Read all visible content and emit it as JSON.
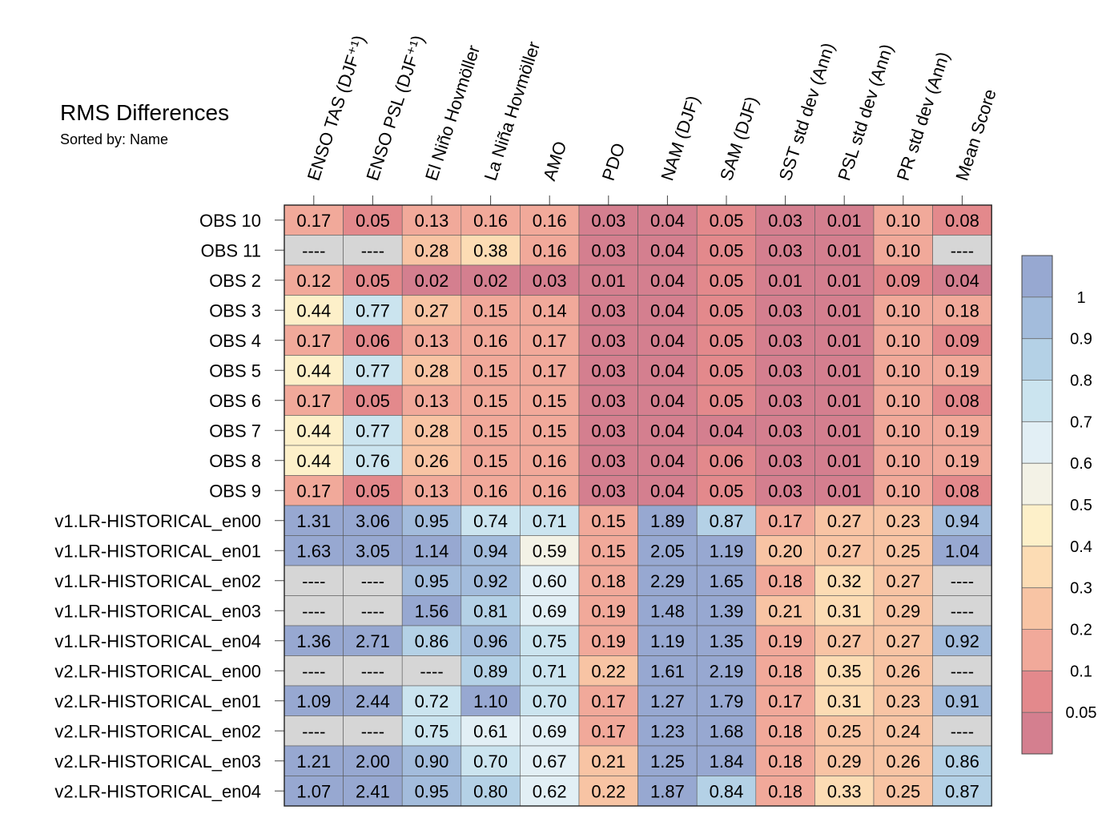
{
  "title": "RMS Differences",
  "subtitle": "Sorted by: Name",
  "chart_data": {
    "type": "heatmap",
    "columns": [
      "ENSO TAS (DJF⁺¹)",
      "ENSO PSL (DJF⁺¹)",
      "El Niño Hovmöller",
      "La Niña Hovmöller",
      "AMO",
      "PDO",
      "NAM (DJF)",
      "SAM (DJF)",
      "SST std dev (Ann)",
      "PSL std dev (Ann)",
      "PR std dev (Ann)",
      "Mean Score"
    ],
    "rows": [
      "OBS 10",
      "OBS 11",
      "OBS 2",
      "OBS 3",
      "OBS 4",
      "OBS 5",
      "OBS 6",
      "OBS 7",
      "OBS 8",
      "OBS 9",
      "v1.LR-HISTORICAL_en00",
      "v1.LR-HISTORICAL_en01",
      "v1.LR-HISTORICAL_en02",
      "v1.LR-HISTORICAL_en03",
      "v1.LR-HISTORICAL_en04",
      "v2.LR-HISTORICAL_en00",
      "v2.LR-HISTORICAL_en01",
      "v2.LR-HISTORICAL_en02",
      "v2.LR-HISTORICAL_en03",
      "v2.LR-HISTORICAL_en04"
    ],
    "values": [
      [
        "0.17",
        "0.05",
        "0.13",
        "0.16",
        "0.16",
        "0.03",
        "0.04",
        "0.05",
        "0.03",
        "0.01",
        "0.10",
        "0.08"
      ],
      [
        "----",
        "----",
        "0.28",
        "0.38",
        "0.16",
        "0.03",
        "0.04",
        "0.05",
        "0.03",
        "0.01",
        "0.10",
        "----"
      ],
      [
        "0.12",
        "0.05",
        "0.02",
        "0.02",
        "0.03",
        "0.01",
        "0.04",
        "0.05",
        "0.01",
        "0.01",
        "0.09",
        "0.04"
      ],
      [
        "0.44",
        "0.77",
        "0.27",
        "0.15",
        "0.14",
        "0.03",
        "0.04",
        "0.05",
        "0.03",
        "0.01",
        "0.10",
        "0.18"
      ],
      [
        "0.17",
        "0.06",
        "0.13",
        "0.16",
        "0.17",
        "0.03",
        "0.04",
        "0.05",
        "0.03",
        "0.01",
        "0.10",
        "0.09"
      ],
      [
        "0.44",
        "0.77",
        "0.28",
        "0.15",
        "0.17",
        "0.03",
        "0.04",
        "0.05",
        "0.03",
        "0.01",
        "0.10",
        "0.19"
      ],
      [
        "0.17",
        "0.05",
        "0.13",
        "0.15",
        "0.15",
        "0.03",
        "0.04",
        "0.05",
        "0.03",
        "0.01",
        "0.10",
        "0.08"
      ],
      [
        "0.44",
        "0.77",
        "0.28",
        "0.15",
        "0.15",
        "0.03",
        "0.04",
        "0.04",
        "0.03",
        "0.01",
        "0.10",
        "0.19"
      ],
      [
        "0.44",
        "0.76",
        "0.26",
        "0.15",
        "0.16",
        "0.03",
        "0.04",
        "0.06",
        "0.03",
        "0.01",
        "0.10",
        "0.19"
      ],
      [
        "0.17",
        "0.05",
        "0.13",
        "0.16",
        "0.16",
        "0.03",
        "0.04",
        "0.05",
        "0.03",
        "0.01",
        "0.10",
        "0.08"
      ],
      [
        "1.31",
        "3.06",
        "0.95",
        "0.74",
        "0.71",
        "0.15",
        "1.89",
        "0.87",
        "0.17",
        "0.27",
        "0.23",
        "0.94"
      ],
      [
        "1.63",
        "3.05",
        "1.14",
        "0.94",
        "0.59",
        "0.15",
        "2.05",
        "1.19",
        "0.20",
        "0.27",
        "0.25",
        "1.04"
      ],
      [
        "----",
        "----",
        "0.95",
        "0.92",
        "0.60",
        "0.18",
        "2.29",
        "1.65",
        "0.18",
        "0.32",
        "0.27",
        "----"
      ],
      [
        "----",
        "----",
        "1.56",
        "0.81",
        "0.69",
        "0.19",
        "1.48",
        "1.39",
        "0.21",
        "0.31",
        "0.29",
        "----"
      ],
      [
        "1.36",
        "2.71",
        "0.86",
        "0.96",
        "0.75",
        "0.19",
        "1.19",
        "1.35",
        "0.19",
        "0.27",
        "0.27",
        "0.92"
      ],
      [
        "----",
        "----",
        "----",
        "0.89",
        "0.71",
        "0.22",
        "1.61",
        "2.19",
        "0.18",
        "0.35",
        "0.26",
        "----"
      ],
      [
        "1.09",
        "2.44",
        "0.72",
        "1.10",
        "0.70",
        "0.17",
        "1.27",
        "1.79",
        "0.17",
        "0.31",
        "0.23",
        "0.91"
      ],
      [
        "----",
        "----",
        "0.75",
        "0.61",
        "0.69",
        "0.17",
        "1.23",
        "1.68",
        "0.18",
        "0.25",
        "0.24",
        "----"
      ],
      [
        "1.21",
        "2.00",
        "0.90",
        "0.70",
        "0.67",
        "0.21",
        "1.25",
        "1.84",
        "0.18",
        "0.29",
        "0.26",
        "0.86"
      ],
      [
        "1.07",
        "2.41",
        "0.95",
        "0.80",
        "0.62",
        "0.22",
        "1.87",
        "0.84",
        "0.18",
        "0.33",
        "0.25",
        "0.87"
      ]
    ],
    "missing_value": "----",
    "missing_color": "#d6d6d6",
    "colorbar": {
      "boundaries": [
        0.05,
        0.1,
        0.2,
        0.3,
        0.4,
        0.5,
        0.6,
        0.7,
        0.8,
        0.9,
        1
      ],
      "labels": [
        "0.05",
        "0.1",
        "0.2",
        "0.3",
        "0.4",
        "0.5",
        "0.6",
        "0.7",
        "0.8",
        "0.9",
        "1"
      ],
      "colors": [
        "#d47f8f",
        "#e3898c",
        "#f1a99a",
        "#f8c4a4",
        "#fcdcb4",
        "#fdf0c9",
        "#f3f2e6",
        "#e2eff5",
        "#cbe4ef",
        "#b4d1e6",
        "#a3bcdc",
        "#97a8d1"
      ]
    }
  }
}
